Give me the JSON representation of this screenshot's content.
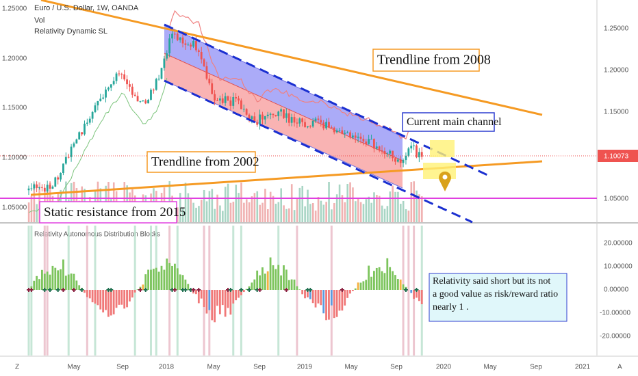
{
  "header": {
    "title": "Euro / U.S. Dollar, 1W, OANDA",
    "lines": [
      "Vol",
      "Relativity Dynamic SL"
    ]
  },
  "left_axis": {
    "labels": [
      "1.25000",
      "1.20000",
      "1.15000",
      "1.10000",
      "1.05000"
    ]
  },
  "right_axis": {
    "labels": [
      "1.25000",
      "1.20000",
      "1.15000",
      "1.05000"
    ],
    "price_label": "1.10073"
  },
  "lower_pane": {
    "title": "Relativity Autonomous Distribution Blocks",
    "labels": [
      "20.00000",
      "10.00000",
      "0.00000",
      "-10.00000",
      "-20.00000"
    ]
  },
  "time_axis": {
    "labels": [
      "May",
      "Sep",
      "2018",
      "May",
      "Sep",
      "2019",
      "May",
      "Sep",
      "2020",
      "May",
      "Sep",
      "2021"
    ],
    "left": "Z",
    "right": "A"
  },
  "annotations": {
    "trend_2008": "Trendline from 2008",
    "channel": "Current main channel",
    "trend_2002": "Trendline from 2002",
    "static": "Static resistance from 2015"
  },
  "note": {
    "lines": [
      "Relativity said short but its not",
      "a good value as risk/reward ratio",
      "nearly 1 ."
    ]
  }
}
